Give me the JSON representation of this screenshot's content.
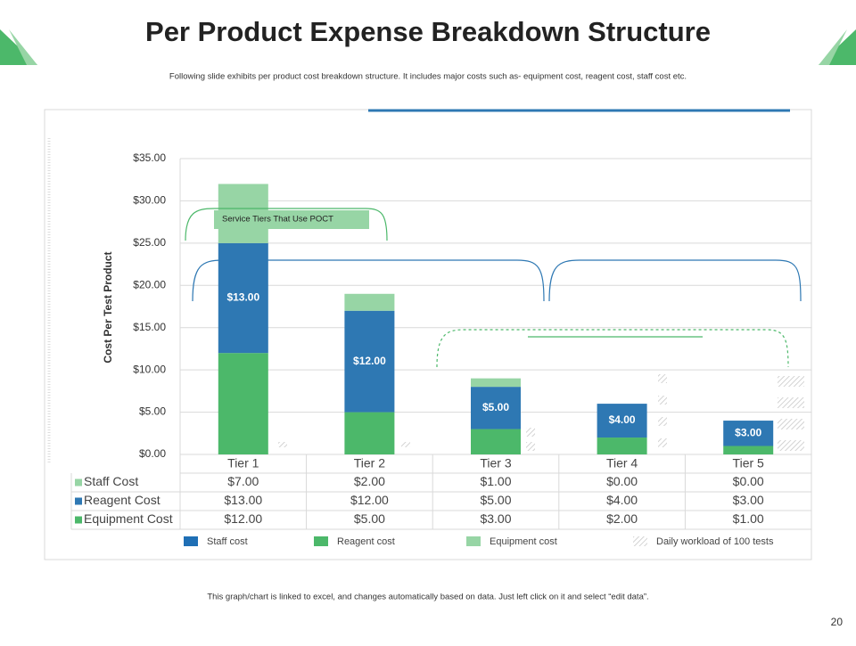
{
  "title": "Per Product Expense Breakdown Structure",
  "subtitle": "Following slide exhibits per product cost breakdown structure. It includes major costs such as- equipment cost, reagent cost, staff cost etc.",
  "footer": "This graph/chart is linked to excel, and changes automatically based on data. Just left click on it and select “edit data”.",
  "page_number": "20",
  "chart_data": {
    "type": "stacked_bar",
    "y_label": "Cost Per Test Product",
    "annotation": "Service Tiers That Use POCT",
    "categories": [
      "Tier 1",
      "Tier 2",
      "Tier 3",
      "Tier 4",
      "Tier 5"
    ],
    "series": [
      {
        "name": "Staff Cost",
        "color": "#97d5a5",
        "values": [
          7,
          2,
          1,
          0,
          0
        ],
        "value_labels": [
          "$7.00",
          "$2.00",
          "$1.00",
          "$0.00",
          "$0.00"
        ]
      },
      {
        "name": "Reagent Cost",
        "color": "#2e78b3",
        "values": [
          13,
          12,
          5,
          4,
          3
        ],
        "value_labels": [
          "$13.00",
          "$12.00",
          "$5.00",
          "$4.00",
          "$3.00"
        ]
      },
      {
        "name": "Equipment Cost",
        "color": "#4cb86a",
        "values": [
          12,
          5,
          3,
          2,
          1
        ],
        "value_labels": [
          "$12.00",
          "$5.00",
          "$3.00",
          "$2.00",
          "$1.00"
        ]
      }
    ],
    "ylim": [
      0,
      35
    ],
    "yticks": [
      {
        "value": 0,
        "label": "$0.00"
      },
      {
        "value": 5,
        "label": "$5.00"
      },
      {
        "value": 10,
        "label": "$10.00"
      },
      {
        "value": 15,
        "label": "$15.00"
      },
      {
        "value": 20,
        "label": "$20.00"
      },
      {
        "value": 25,
        "label": "$25.00"
      },
      {
        "value": 30,
        "label": "$30.00"
      },
      {
        "value": 35,
        "label": "$35.00"
      }
    ],
    "grid": true,
    "legend": [
      {
        "label": "Staff cost",
        "color": "#1f6fb5"
      },
      {
        "label": "Reagent cost",
        "color": "#4cb86a"
      },
      {
        "label": "Equipment cost",
        "color": "#97d5a5"
      },
      {
        "label": "Daily workload of 100 tests",
        "color": "hatch"
      }
    ]
  }
}
